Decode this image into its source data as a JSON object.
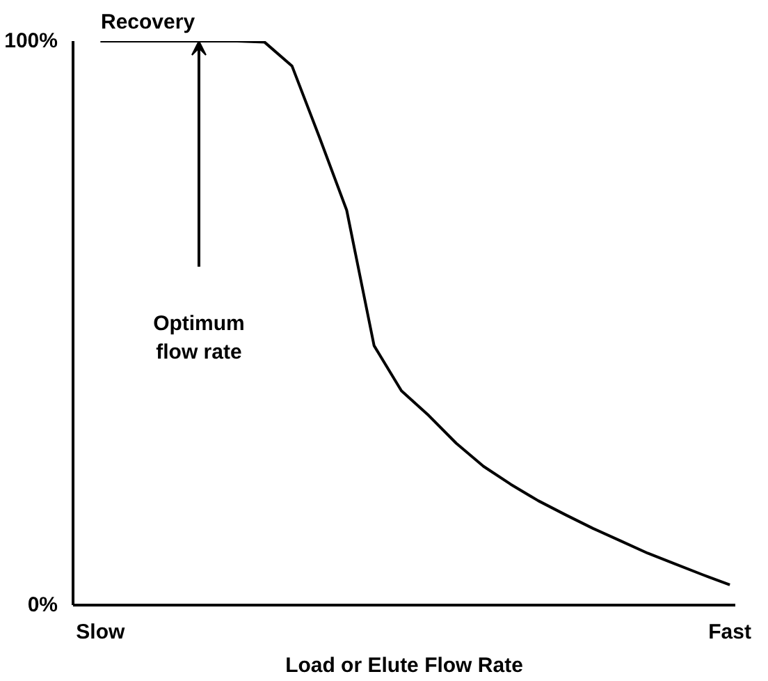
{
  "chart_data": {
    "type": "line",
    "ylabel": "Recovery",
    "xlabel": "Load or Elute Flow Rate",
    "categories": [
      "Slow",
      null,
      null,
      null,
      null,
      null,
      null,
      null,
      null,
      null,
      null,
      null,
      null,
      null,
      null,
      null,
      null,
      null,
      null,
      null,
      null,
      null,
      null,
      "Fast"
    ],
    "series": [
      {
        "color": "#000000",
        "values": [
          100,
          100,
          100,
          100,
          100,
          100,
          99.8,
          95.6,
          83,
          70,
          46,
          38,
          33.6,
          28.7,
          24.6,
          21.4,
          18.5,
          16,
          13.6,
          11.4,
          9.2,
          7.3,
          5.4,
          3.6
        ]
      }
    ],
    "ylim": [
      0,
      100
    ],
    "yticks": [
      {
        "value": 0,
        "label": "0%"
      },
      {
        "value": 100,
        "label": "100%"
      }
    ],
    "annotations": [
      "Optimum\nflow rate"
    ],
    "grid": false,
    "marker": "none",
    "line_style": "solid"
  }
}
